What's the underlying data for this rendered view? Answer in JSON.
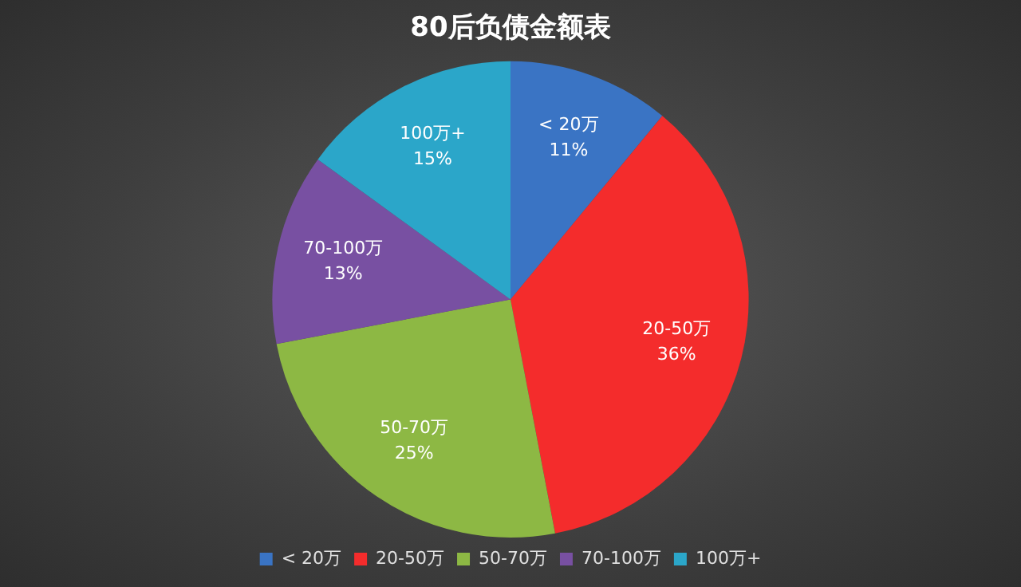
{
  "chart_data": {
    "type": "pie",
    "title": "80后负债金额表",
    "categories": [
      "< 20万",
      "20-50万",
      "50-70万",
      "70-100万",
      "100万+"
    ],
    "values": [
      11,
      36,
      25,
      13,
      15
    ],
    "value_labels": [
      "11%",
      "36%",
      "25%",
      "13%",
      "15%"
    ],
    "colors": [
      "#3a74c4",
      "#f42c2c",
      "#8db844",
      "#7850a2",
      "#2ba6c9"
    ],
    "legend": "bottom"
  }
}
